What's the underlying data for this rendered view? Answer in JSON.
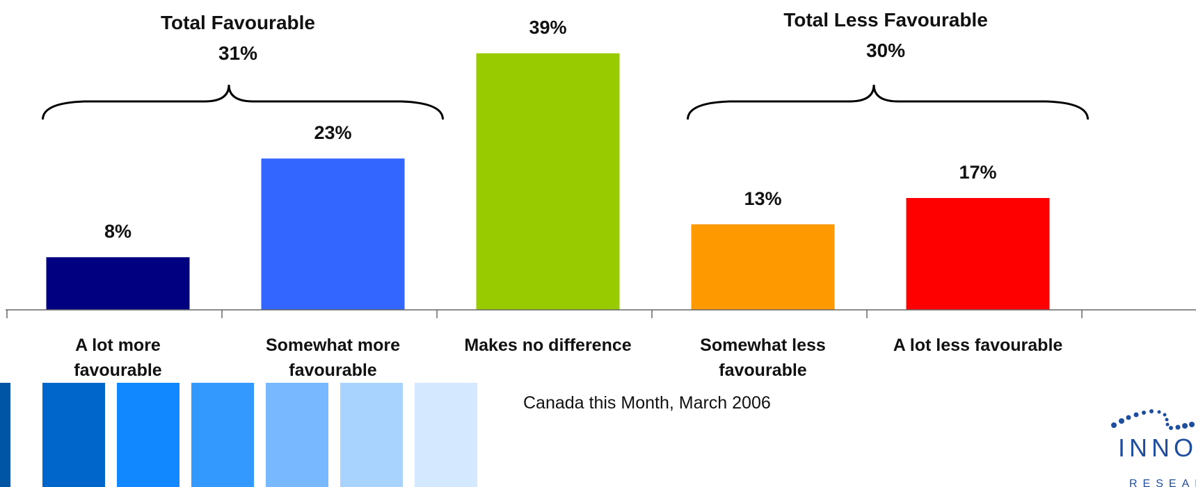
{
  "chart_data": {
    "type": "bar",
    "title": "",
    "xlabel": "",
    "ylabel": "",
    "ylim": [
      0,
      45
    ],
    "grid": false,
    "categories": [
      [
        "A lot more",
        "favourable"
      ],
      [
        "Somewhat more",
        "favourable"
      ],
      [
        "Makes no difference"
      ],
      [
        "Somewhat less",
        "favourable"
      ],
      [
        "A lot less favourable"
      ]
    ],
    "values": [
      8,
      23,
      39,
      13,
      17
    ],
    "value_labels": [
      "8%",
      "23%",
      "39%",
      "13%",
      "17%"
    ],
    "colors": [
      "#000080",
      "#3366FF",
      "#99CC00",
      "#FF9900",
      "#FF0000"
    ],
    "groups": [
      {
        "title": "Total Favourable",
        "total": "31%",
        "covers": [
          0,
          1
        ]
      },
      {
        "title": "Total Less Favourable",
        "total": "30%",
        "covers": [
          3,
          4
        ]
      }
    ]
  },
  "footer": {
    "source": "Canada this Month, March 2006",
    "decor_colors": [
      "#0055A5",
      "#0066CC",
      "#1188FF",
      "#3399FF",
      "#77B8FF",
      "#A8D2FF",
      "#D4E8FF"
    ],
    "logo_text": "INNOVA",
    "logo_subtext": "RESEARCH",
    "logo_color": "#1F4E9E"
  }
}
